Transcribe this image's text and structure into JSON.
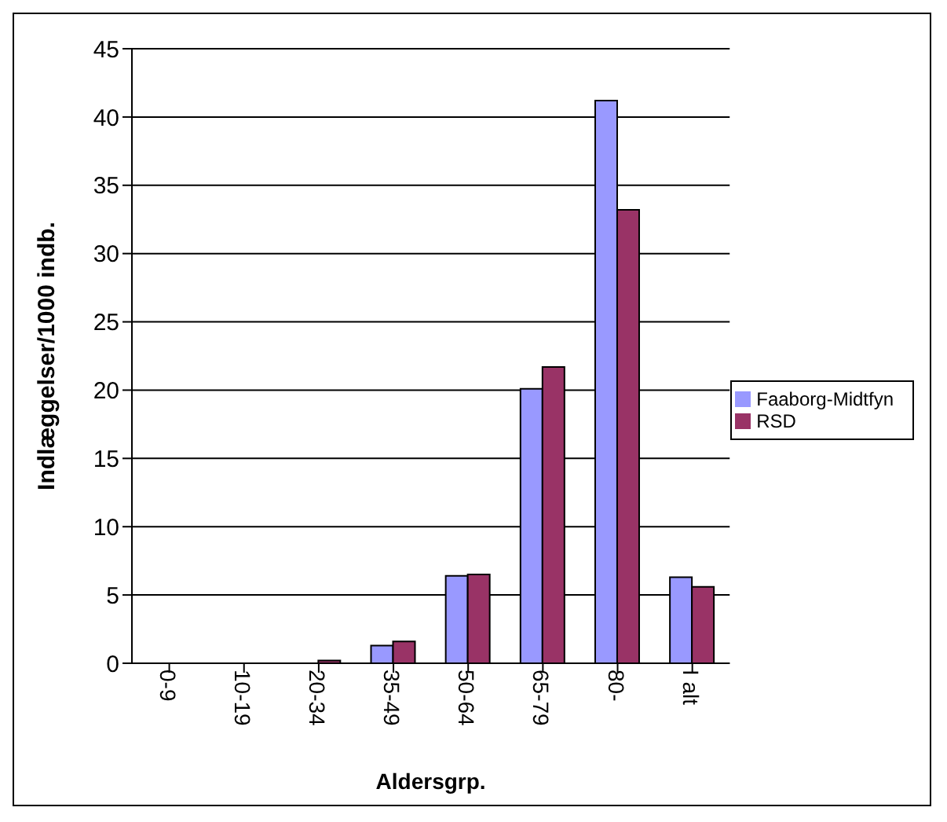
{
  "chart_data": {
    "type": "bar",
    "xlabel": "Aldersgrp.",
    "ylabel": "Indlæggelser/1000 indb.",
    "categories": [
      "0-9",
      "10-19",
      "20-34",
      "35-49",
      "50-64",
      "65-79",
      "80-",
      "I alt"
    ],
    "series": [
      {
        "name": "Faaborg-Midtfyn",
        "color": "#9999ff",
        "values": [
          0,
          0,
          0,
          1.3,
          6.4,
          20.1,
          41.2,
          6.3
        ]
      },
      {
        "name": "RSD",
        "color": "#993366",
        "values": [
          0,
          0,
          0.2,
          1.6,
          6.5,
          21.7,
          33.2,
          5.6
        ]
      }
    ],
    "ylim": [
      0,
      45
    ],
    "yticks": [
      0,
      5,
      10,
      15,
      20,
      25,
      30,
      35,
      40,
      45
    ],
    "grid": "y",
    "legend": "right"
  }
}
